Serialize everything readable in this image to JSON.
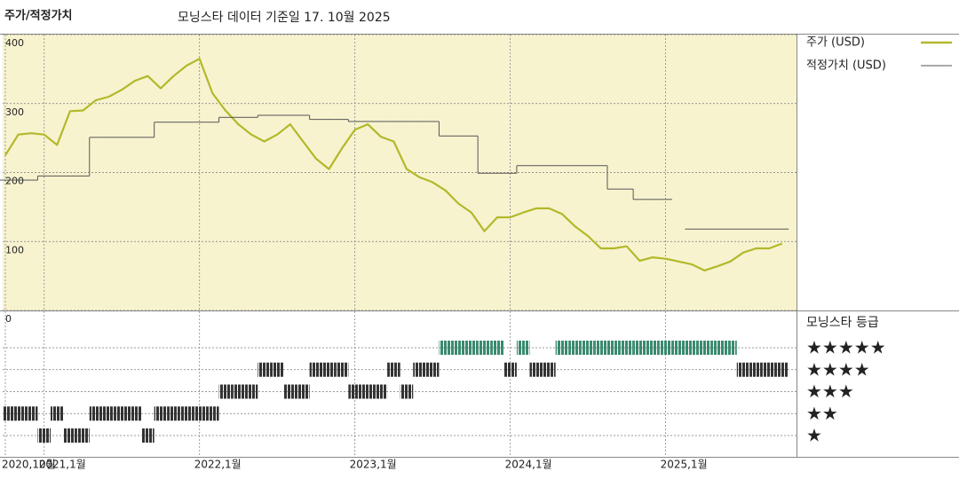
{
  "chart_data": {
    "type": "line",
    "title": "주가/적정가치",
    "subtitle": "모닝스타 데이터 기준일 17. 10월 2025",
    "x": [
      "2020-10",
      "2020-11",
      "2020-12",
      "2021-01",
      "2021-02",
      "2021-03",
      "2021-04",
      "2021-05",
      "2021-06",
      "2021-07",
      "2021-08",
      "2021-09",
      "2021-10",
      "2021-11",
      "2021-12",
      "2022-01",
      "2022-02",
      "2022-03",
      "2022-04",
      "2022-05",
      "2022-06",
      "2022-07",
      "2022-08",
      "2022-09",
      "2022-10",
      "2022-11",
      "2022-12",
      "2023-01",
      "2023-02",
      "2023-03",
      "2023-04",
      "2023-05",
      "2023-06",
      "2023-07",
      "2023-08",
      "2023-09",
      "2023-10",
      "2023-11",
      "2023-12",
      "2024-01",
      "2024-02",
      "2024-03",
      "2024-04",
      "2024-05",
      "2024-06",
      "2024-07",
      "2024-08",
      "2024-09",
      "2024-10",
      "2024-11",
      "2024-12",
      "2025-01",
      "2025-02",
      "2025-03",
      "2025-04",
      "2025-05",
      "2025-06",
      "2025-07",
      "2025-08",
      "2025-09",
      "2025-10"
    ],
    "xticks": [
      {
        "value": "2020-10",
        "label": "2020,10월"
      },
      {
        "value": "2021-01",
        "label": "2021,1월"
      },
      {
        "value": "2022-01",
        "label": "2022,1월"
      },
      {
        "value": "2023-01",
        "label": "2023,1월"
      },
      {
        "value": "2024-01",
        "label": "2024,1월"
      },
      {
        "value": "2025-01",
        "label": "2025,1월"
      }
    ],
    "ylim": [
      0,
      400
    ],
    "yticks": [
      0,
      100,
      200,
      300,
      400
    ],
    "grid": true,
    "series": [
      {
        "name": "주가 (USD)",
        "color": "#b3b82a",
        "values": [
          225,
          255,
          257,
          255,
          240,
          289,
          290,
          305,
          310,
          320,
          333,
          340,
          322,
          340,
          355,
          365,
          315,
          290,
          270,
          255,
          245,
          255,
          270,
          245,
          220,
          205,
          235,
          262,
          270,
          252,
          245,
          205,
          193,
          186,
          174,
          155,
          142,
          115,
          135,
          135,
          142,
          148,
          148,
          140,
          122,
          108,
          90,
          90,
          93,
          72,
          77,
          75,
          71,
          67,
          58,
          64,
          71,
          84,
          90,
          90,
          97
        ]
      },
      {
        "name": "적정가치 (USD)",
        "color": "#555555",
        "step": true,
        "values": [
          189,
          189,
          189,
          195,
          195,
          195,
          195,
          251,
          251,
          251,
          251,
          251,
          273,
          273,
          273,
          273,
          273,
          280,
          280,
          280,
          283,
          283,
          283,
          283,
          277,
          277,
          277,
          274,
          274,
          274,
          274,
          274,
          274,
          274,
          253,
          253,
          253,
          199,
          199,
          199,
          210,
          210,
          210,
          210,
          210,
          210,
          210,
          176,
          176,
          161,
          161,
          161,
          null,
          118,
          118,
          118,
          118,
          118,
          118,
          118,
          118
        ]
      }
    ],
    "ratings": {
      "title": "모닝스타 등급",
      "yticks": [
        {
          "value": 5,
          "label": "★★★★★"
        },
        {
          "value": 4,
          "label": "★★★★"
        },
        {
          "value": 3,
          "label": "★★★"
        },
        {
          "value": 2,
          "label": "★★"
        },
        {
          "value": 1,
          "label": "★"
        }
      ],
      "colors": [
        "#3b8a70",
        "#333333",
        "#333333",
        "#333333",
        "#333333"
      ],
      "values": [
        2,
        2,
        2,
        1,
        2,
        1,
        1,
        2,
        2,
        2,
        2,
        1,
        2,
        2,
        2,
        2,
        2,
        3,
        3,
        3,
        4,
        4,
        3,
        3,
        4,
        4,
        4,
        3,
        3,
        3,
        4,
        3,
        4,
        4,
        5,
        5,
        5,
        5,
        5,
        4,
        5,
        4,
        4,
        5,
        5,
        5,
        5,
        5,
        5,
        5,
        5,
        5,
        5,
        5,
        5,
        5,
        5,
        4,
        4,
        4,
        4
      ]
    }
  }
}
